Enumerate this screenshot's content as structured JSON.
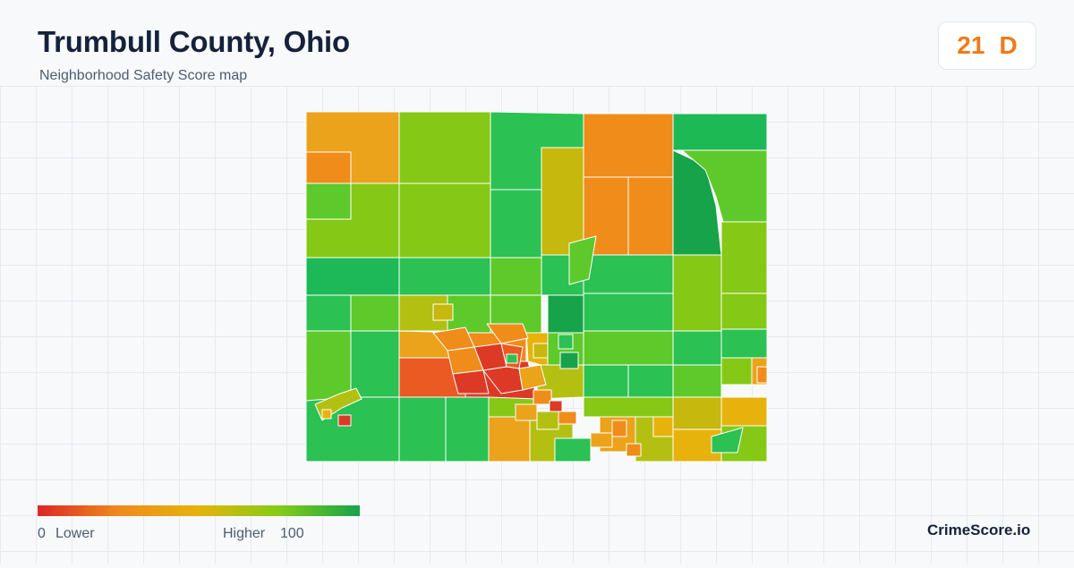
{
  "header": {
    "title": "Trumbull County, Ohio",
    "subtitle": "Neighborhood Safety Score map"
  },
  "score": {
    "value": "21",
    "grade": "D",
    "color": "#f07a1a"
  },
  "legend": {
    "min_value": "0",
    "min_label": "Lower",
    "max_label": "Higher",
    "max_value": "100",
    "gradient": [
      "#dc2626",
      "#f08a1c",
      "#e6b30c",
      "#84cc16",
      "#16a34a"
    ]
  },
  "brand": "CrimeScore.io",
  "map_palette": {
    "red": "#dc3a26",
    "red_orange": "#ea5a22",
    "orange": "#f08c1a",
    "amber": "#eaa31a",
    "gold": "#e8b20c",
    "olive": "#c6b80c",
    "yellow_green": "#b3c012",
    "lime": "#86c816",
    "light_green": "#5ec92a",
    "green": "#2bc153",
    "green_dark": "#1db957",
    "forest": "#16a34a"
  }
}
